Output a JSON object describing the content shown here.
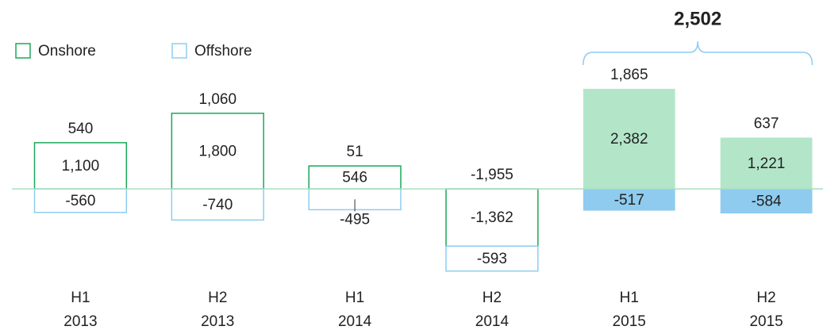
{
  "chart_data": {
    "type": "stacked_bar",
    "categories": [
      [
        "H1",
        "2013"
      ],
      [
        "H2",
        "2013"
      ],
      [
        "H1",
        "2014"
      ],
      [
        "H2",
        "2014"
      ],
      [
        "H1",
        "2015"
      ],
      [
        "H2",
        "2015"
      ]
    ],
    "series": [
      {
        "name": "Onshore",
        "color": "#1aa85a",
        "fill_color": "#b3e6c9",
        "values": [
          1100,
          1800,
          546,
          -1362,
          2382,
          1221
        ],
        "value_labels": [
          "1,100",
          "1,800",
          "546",
          "-1,362",
          "2,382",
          "1,221"
        ]
      },
      {
        "name": "Offshore",
        "color": "#8ecdf0",
        "fill_color": "#8ecbef",
        "values": [
          -560,
          -740,
          -495,
          -593,
          -517,
          -584
        ],
        "value_labels": [
          "-560",
          "-740",
          "-495",
          "-593",
          "-517",
          "-584"
        ]
      }
    ],
    "totals": [
      540,
      1060,
      51,
      -1955,
      1865,
      637
    ],
    "total_labels": [
      "540",
      "1,060",
      "51",
      "-1,955",
      "1,865",
      "637"
    ],
    "filled": [
      false,
      false,
      false,
      false,
      true,
      true
    ],
    "annotation": {
      "text": "2,502",
      "categories": [
        4,
        5
      ]
    },
    "baseline_color": "#a8dfc0",
    "ylim": [
      -2300,
      3740
    ],
    "legend": "top-left"
  }
}
